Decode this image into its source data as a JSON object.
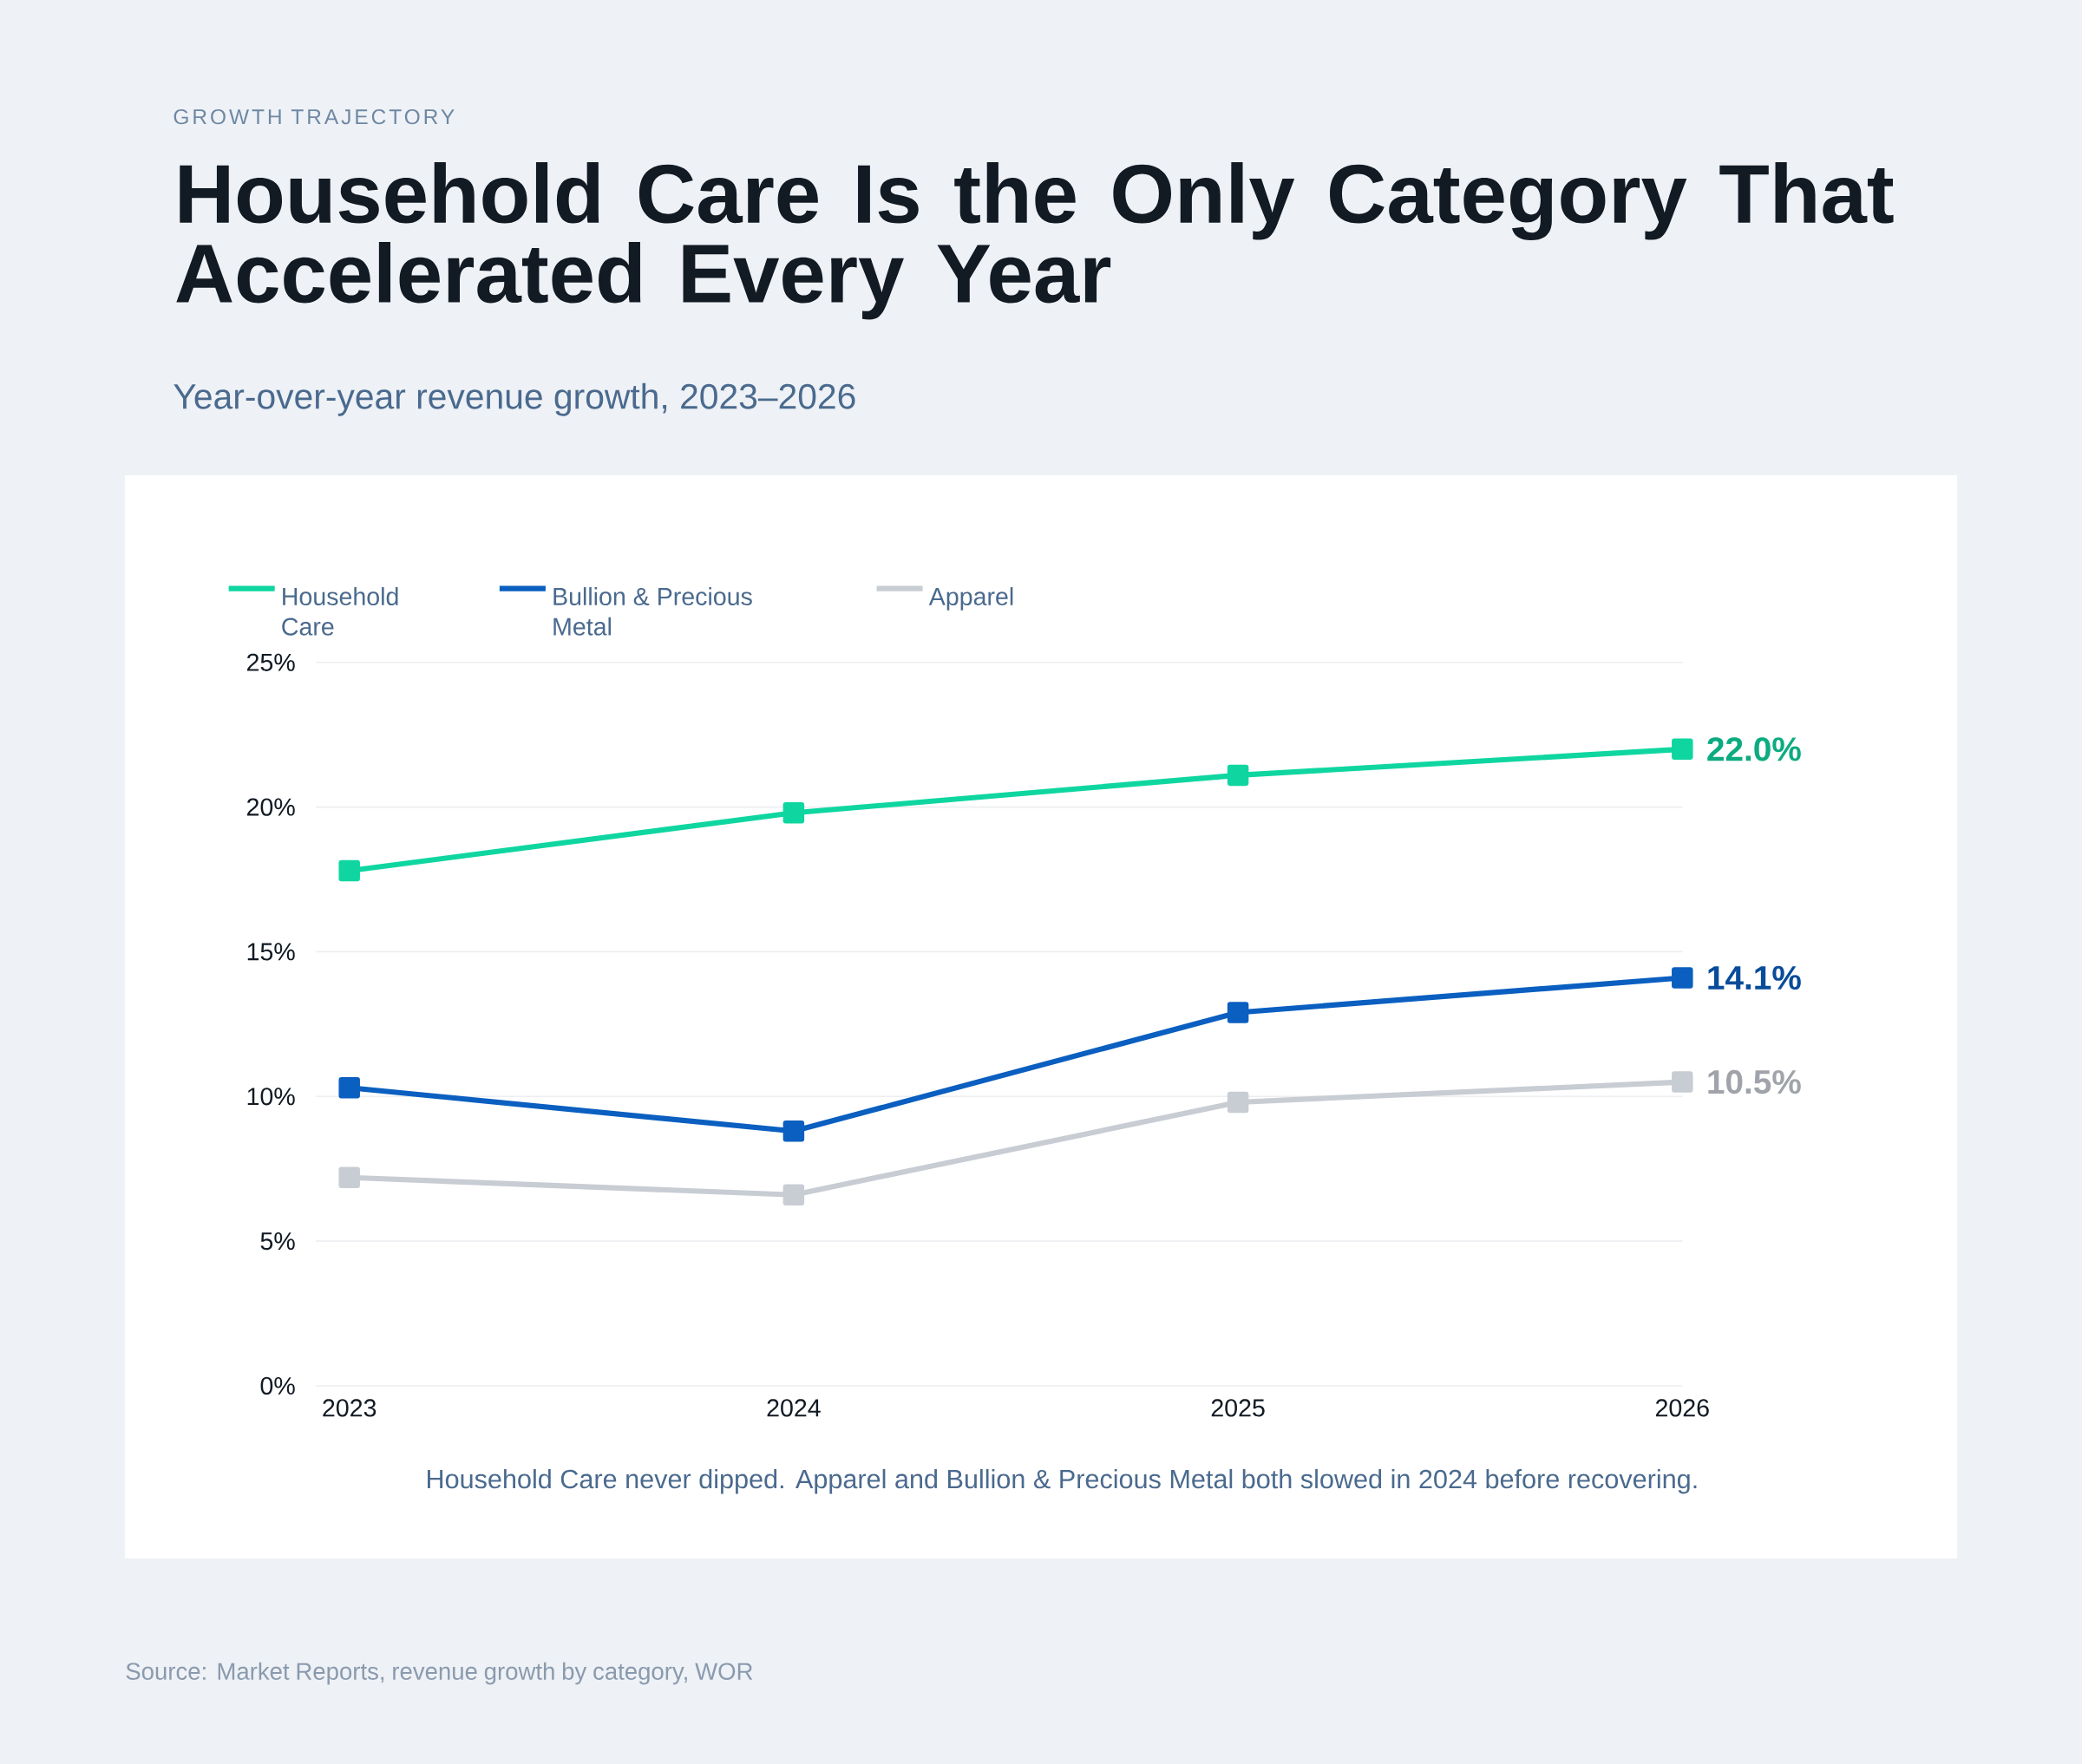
{
  "chart_data": {
    "type": "line",
    "title": "Household Care Is the Only Category That Accelerated Every Year",
    "subtitle": "Year-over-year revenue growth, 2023–2026",
    "annotations": [
      "GROWTH TRAJECTORY",
      "Household Care never dipped. Apparel and Bullion & Precious Metal both slowed in 2024 before recovering.",
      "Source: Market Reports, revenue growth by category, WOR"
    ],
    "categories": [
      "2023",
      "2024",
      "2025",
      "2026"
    ],
    "series": [
      {
        "name": "Household Care",
        "color": "#0fd6a0",
        "values": [
          17.8,
          19.8,
          21.1,
          22.0
        ],
        "value_labels": [
          null,
          null,
          null,
          "22.0%"
        ]
      },
      {
        "name": "Bullion & Precious Metal",
        "color": "#0a5fc0",
        "values": [
          10.3,
          8.8,
          12.9,
          14.1
        ],
        "value_labels": [
          null,
          null,
          null,
          "14.1%"
        ]
      },
      {
        "name": "Apparel",
        "color": "#c8cdd4",
        "values": [
          7.2,
          6.6,
          9.8,
          10.5
        ],
        "value_labels": [
          null,
          null,
          null,
          "10.5%"
        ]
      }
    ],
    "ylim": [
      0,
      25
    ],
    "yticks": [
      {
        "value": 0,
        "label": "0%"
      },
      {
        "value": 5,
        "label": "5%"
      },
      {
        "value": 10,
        "label": "10%"
      },
      {
        "value": 15,
        "label": "15%"
      },
      {
        "value": 20,
        "label": "20%"
      },
      {
        "value": 25,
        "label": "25%"
      }
    ],
    "grid": "y",
    "legend": "top left",
    "marker": "square",
    "line_style": "solid"
  }
}
